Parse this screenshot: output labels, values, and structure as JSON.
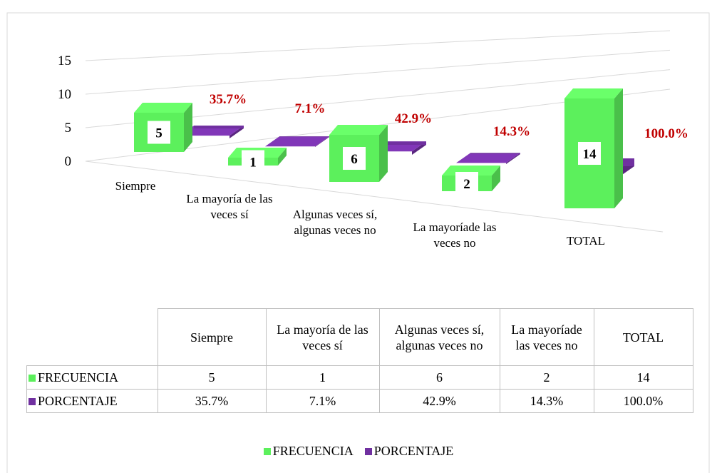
{
  "chart_data": {
    "type": "bar",
    "categories": [
      "Siempre",
      "La mayoría de las veces sí",
      "Algunas veces sí, algunas veces no",
      "La mayoríade las veces no",
      "TOTAL"
    ],
    "series": [
      {
        "name": "FRECUENCIA",
        "color": "#5cf05c",
        "values": [
          5,
          1,
          6,
          2,
          14
        ]
      },
      {
        "name": "PORCENTAJE",
        "color": "#7030a0",
        "values": [
          0.357,
          0.071,
          0.429,
          0.143,
          1.0
        ],
        "value_labels": [
          "35.7%",
          "7.1%",
          "42.9%",
          "14.3%",
          "100.0%"
        ]
      }
    ],
    "ylim": [
      0,
      15
    ],
    "yticks": [
      0,
      5,
      10,
      15
    ],
    "grid": true,
    "legend": "bottom"
  }
}
